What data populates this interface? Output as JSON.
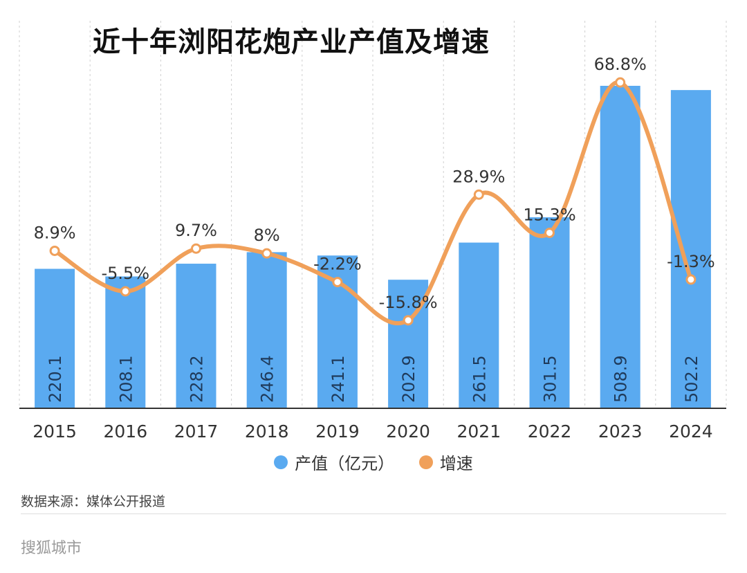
{
  "colors": {
    "bar": "#5aaaf0",
    "line": "#f0a05a",
    "axis": "#333333",
    "grid": "#cfcfcf"
  },
  "chart_data": {
    "type": "bar",
    "title": "近十年浏阳花炮产业产值及增速",
    "categories": [
      "2015",
      "2016",
      "2017",
      "2018",
      "2019",
      "2020",
      "2021",
      "2022",
      "2023",
      "2024"
    ],
    "series": [
      {
        "name": "产值（亿元）",
        "type": "bar",
        "values": [
          220.1,
          208.1,
          228.2,
          246.4,
          241.1,
          202.9,
          261.5,
          301.5,
          508.9,
          502.2
        ],
        "labels": [
          "220.1",
          "208.1",
          "228.2",
          "246.4",
          "241.1",
          "202.9",
          "261.5",
          "301.5",
          "508.9",
          "502.2"
        ]
      },
      {
        "name": "增速",
        "type": "line",
        "unit": "%",
        "values": [
          8.9,
          -5.5,
          9.7,
          8,
          -2.2,
          -15.8,
          28.9,
          15.3,
          68.8,
          -1.3
        ],
        "labels": [
          "8.9%",
          "-5.5%",
          "9.7%",
          "8%",
          "-2.2%",
          "-15.8%",
          "28.9%",
          "15.3%",
          "68.8%",
          "-1.3%"
        ]
      }
    ],
    "y_bar_range": [
      0,
      510
    ],
    "y_line_range": [
      -22,
      75
    ],
    "grid": true,
    "legend": "bottom"
  },
  "footer": {
    "source": "数据来源：媒体公开报道",
    "brand": "搜狐城市"
  }
}
